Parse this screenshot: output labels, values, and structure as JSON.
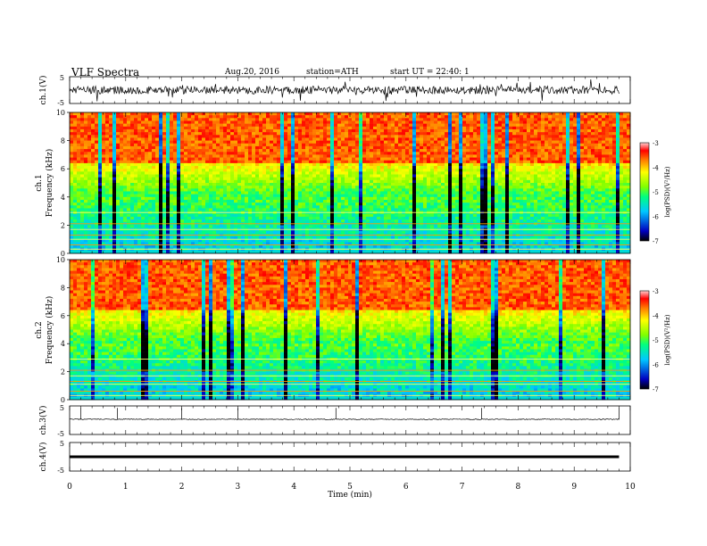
{
  "header": {
    "title": "VLF  Spectra",
    "date": "Aug.20, 2016",
    "station": "station=ATH",
    "start_ut": "start  UT  =   22:40: 1"
  },
  "colors": {
    "spectrum_low": "#000080",
    "spectrum_mid": "#00c8ff",
    "spectrum_green": "#00ff00",
    "spectrum_yellow": "#ffff00",
    "spectrum_high": "#ff0000",
    "spectrum_top": "#ffffff"
  },
  "chart_data": [
    {
      "type": "line",
      "panel": "ch1-waveform",
      "ylabel": "ch.1(V)",
      "ylim": [
        -5,
        5
      ],
      "yticks": [
        "5",
        "-5"
      ],
      "xlim": [
        0,
        10
      ],
      "baseline_mean": 0,
      "amplitude_approx": 1.5
    },
    {
      "type": "heatmap",
      "panel": "ch1-spectrogram",
      "ylabel_line1": "ch.1",
      "ylabel_line2": "Frequency  (kHz)",
      "ylim": [
        0,
        10
      ],
      "yticks": [
        "0",
        "2",
        "4",
        "6",
        "8",
        "10"
      ],
      "xlim": [
        0,
        10
      ],
      "colorbar": {
        "label": "log(PSD)(V²/Hz)",
        "range": [
          -7,
          -3
        ],
        "ticks": [
          "-3",
          "-4",
          "-5",
          "-6",
          "-7"
        ]
      },
      "constant_lines_khz": [
        0.3,
        0.6,
        1.0,
        1.3,
        1.7,
        2.1,
        2.9
      ]
    },
    {
      "type": "heatmap",
      "panel": "ch2-spectrogram",
      "ylabel_line1": "ch.2",
      "ylabel_line2": "Frequency  (kHz)",
      "ylim": [
        0,
        10
      ],
      "yticks": [
        "0",
        "2",
        "4",
        "6",
        "8",
        "10"
      ],
      "xlim": [
        0,
        10
      ],
      "colorbar": {
        "label": "log(PSD)(V²/Hz)",
        "range": [
          -7,
          -3
        ],
        "ticks": [
          "-3",
          "-4",
          "-5",
          "-6",
          "-7"
        ]
      },
      "constant_lines_khz": [
        0.3,
        0.6,
        1.1,
        1.3,
        1.7,
        2.1,
        2.9
      ]
    },
    {
      "type": "line",
      "panel": "ch3-waveform",
      "ylabel": "ch.3(V)",
      "ylim": [
        -5,
        5
      ],
      "yticks": [
        "5",
        "-5"
      ],
      "xlim": [
        0,
        10
      ],
      "spikes_min": [
        0.2,
        0.85,
        2.0,
        3.0,
        4.75,
        7.35,
        9.8
      ]
    },
    {
      "type": "line",
      "panel": "ch4-waveform",
      "ylabel": "ch.4(V)",
      "ylim": [
        -5,
        5
      ],
      "yticks": [
        "5",
        "-5"
      ],
      "xlim": [
        0,
        10
      ],
      "constant_value": 0
    }
  ],
  "xaxis": {
    "label": "Time  (min)",
    "ticks": [
      "0",
      "1",
      "2",
      "3",
      "4",
      "5",
      "6",
      "7",
      "8",
      "9",
      "10"
    ]
  }
}
